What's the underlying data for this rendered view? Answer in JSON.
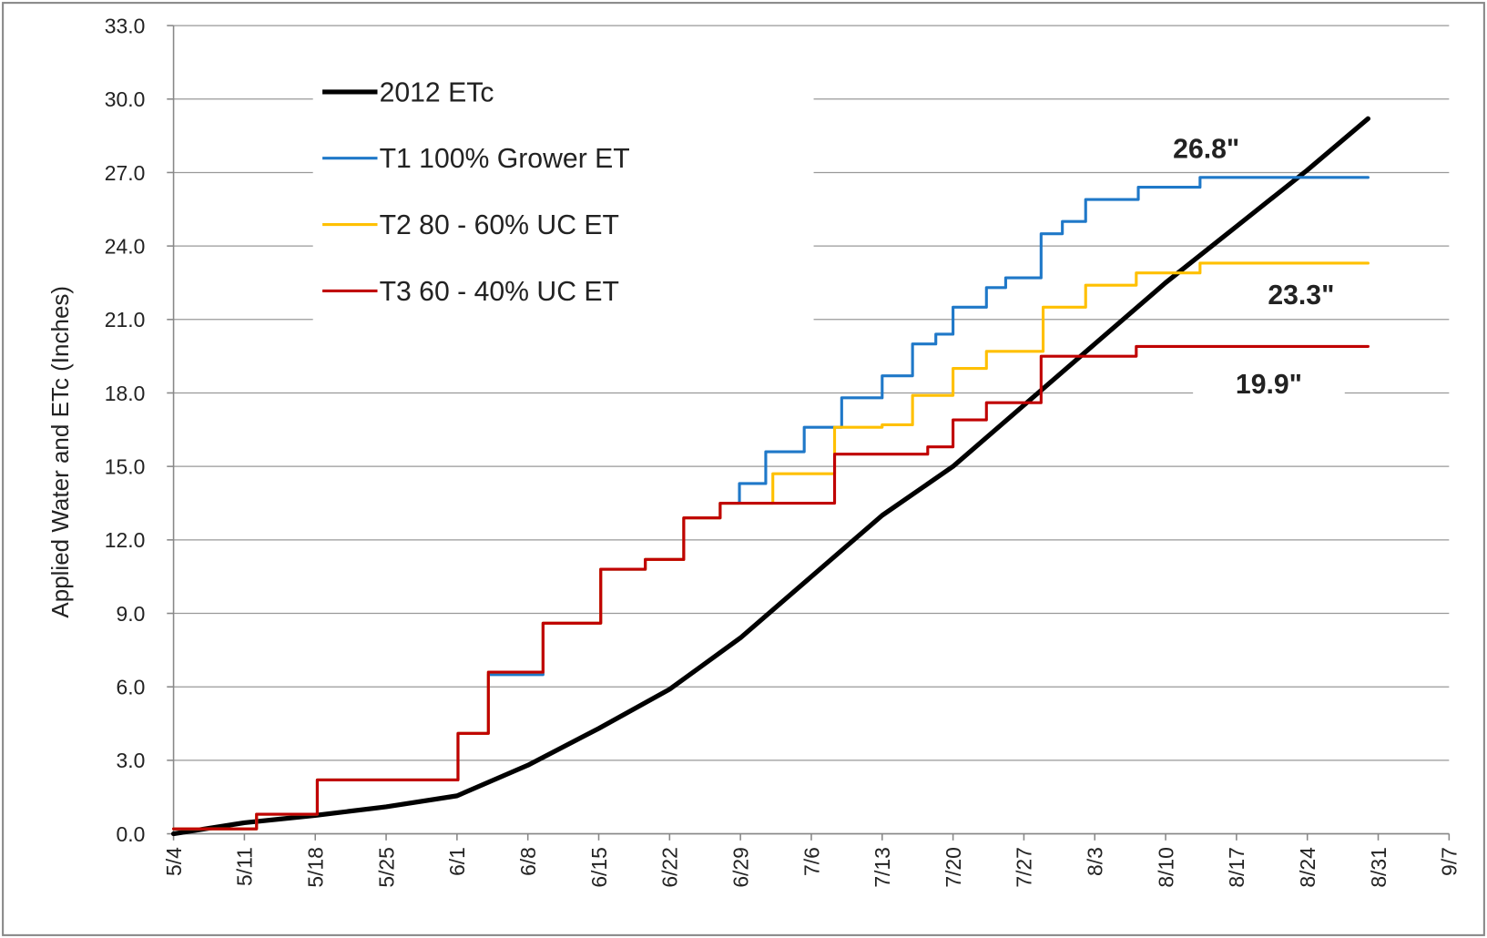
{
  "chart_data": {
    "type": "line",
    "ylabel": "Applied Water and ETc  (Inches)",
    "xlim": [
      0,
      126
    ],
    "xticks": [
      {
        "value": 0,
        "label": "5/4"
      },
      {
        "value": 7,
        "label": "5/11"
      },
      {
        "value": 14,
        "label": "5/18"
      },
      {
        "value": 21,
        "label": "5/25"
      },
      {
        "value": 28,
        "label": "6/1"
      },
      {
        "value": 35,
        "label": "6/8"
      },
      {
        "value": 42,
        "label": "6/15"
      },
      {
        "value": 49,
        "label": "6/22"
      },
      {
        "value": 56,
        "label": "6/29"
      },
      {
        "value": 63,
        "label": "7/6"
      },
      {
        "value": 70,
        "label": "7/13"
      },
      {
        "value": 77,
        "label": "7/20"
      },
      {
        "value": 84,
        "label": "7/27"
      },
      {
        "value": 91,
        "label": "8/3"
      },
      {
        "value": 98,
        "label": "8/10"
      },
      {
        "value": 105,
        "label": "8/17"
      },
      {
        "value": 112,
        "label": "8/24"
      },
      {
        "value": 119,
        "label": "8/31"
      },
      {
        "value": 126,
        "label": "9/7"
      }
    ],
    "ylim": [
      0,
      33
    ],
    "yticks": [
      {
        "value": 0,
        "label": "0.0"
      },
      {
        "value": 3,
        "label": "3.0"
      },
      {
        "value": 6,
        "label": "6.0"
      },
      {
        "value": 9,
        "label": "9.0"
      },
      {
        "value": 12,
        "label": "12.0"
      },
      {
        "value": 15,
        "label": "15.0"
      },
      {
        "value": 18,
        "label": "18.0"
      },
      {
        "value": 21,
        "label": "21.0"
      },
      {
        "value": 24,
        "label": "24.0"
      },
      {
        "value": 27,
        "label": "27.0"
      },
      {
        "value": 30,
        "label": "30.0"
      },
      {
        "value": 33,
        "label": "33.0"
      }
    ],
    "grid": true,
    "series": [
      {
        "name": "2012 ETc",
        "color": "#000000",
        "x": [
          0,
          7,
          14,
          21,
          28,
          35,
          42,
          49,
          56,
          63,
          70,
          77,
          84,
          91,
          98,
          105,
          112,
          118
        ],
        "values": [
          0.0,
          0.45,
          0.75,
          1.1,
          1.55,
          2.8,
          4.3,
          5.9,
          8.0,
          10.5,
          13.0,
          15.0,
          17.5,
          20.0,
          22.5,
          24.8,
          27.1,
          29.2
        ]
      },
      {
        "name": "T1  100% Grower ET",
        "color": "#1f78c8",
        "x": [
          0,
          8.2,
          8.2,
          14.2,
          14.2,
          28.1,
          28.1,
          31.1,
          31.1,
          36.5,
          36.5,
          42.2,
          42.2,
          46.6,
          46.6,
          50.4,
          50.4,
          54,
          54,
          55.9,
          55.9,
          58.5,
          58.5,
          62.3,
          62.3,
          66,
          66,
          70,
          70,
          73,
          73,
          75.3,
          75.3,
          77,
          77,
          80.3,
          80.3,
          82.2,
          82.2,
          85.7,
          85.7,
          87.8,
          87.8,
          90.1,
          90.1,
          95.3,
          95.3,
          101.4,
          101.4,
          118
        ],
        "values": [
          0.2,
          0.2,
          0.8,
          0.8,
          2.2,
          2.2,
          4.1,
          4.1,
          6.5,
          6.5,
          8.6,
          8.6,
          10.8,
          10.8,
          11.2,
          11.2,
          12.9,
          12.9,
          13.5,
          13.5,
          14.3,
          14.3,
          15.6,
          15.6,
          16.6,
          16.6,
          17.8,
          17.8,
          18.7,
          18.7,
          20.0,
          20.0,
          20.4,
          20.4,
          21.5,
          21.5,
          22.3,
          22.3,
          22.7,
          22.7,
          24.5,
          24.5,
          25.0,
          25.0,
          25.9,
          25.9,
          26.4,
          26.4,
          26.8,
          26.8
        ]
      },
      {
        "name": "T2  80 - 60% UC ET",
        "color": "#ffc000",
        "x": [
          0,
          8.2,
          8.2,
          14.2,
          14.2,
          28.1,
          28.1,
          31.1,
          31.1,
          36.5,
          36.5,
          42.2,
          42.2,
          46.6,
          46.6,
          50.4,
          50.4,
          54,
          54,
          59.2,
          59.2,
          65.3,
          65.3,
          70,
          70,
          73,
          73,
          77,
          77,
          80.3,
          80.3,
          85.9,
          85.9,
          90.1,
          90.1,
          95.1,
          95.1,
          101.4,
          101.4,
          118
        ],
        "values": [
          0.2,
          0.2,
          0.8,
          0.8,
          2.2,
          2.2,
          4.1,
          4.1,
          6.6,
          6.6,
          8.6,
          8.6,
          10.8,
          10.8,
          11.2,
          11.2,
          12.9,
          12.9,
          13.5,
          13.5,
          14.7,
          14.7,
          16.6,
          16.6,
          16.7,
          16.7,
          17.9,
          17.9,
          19.0,
          19.0,
          19.7,
          19.7,
          21.5,
          21.5,
          22.4,
          22.4,
          22.9,
          22.9,
          23.3,
          23.3
        ]
      },
      {
        "name": "T3  60 - 40% UC ET",
        "color": "#c00000",
        "x": [
          0,
          8.2,
          8.2,
          14.2,
          14.2,
          28.1,
          28.1,
          31.1,
          31.1,
          36.5,
          36.5,
          42.2,
          42.2,
          46.6,
          46.6,
          50.4,
          50.4,
          54,
          54,
          65.3,
          65.3,
          74.5,
          74.5,
          77,
          77,
          80.3,
          80.3,
          85.7,
          85.7,
          95.1,
          95.1,
          118
        ],
        "values": [
          0.2,
          0.2,
          0.8,
          0.8,
          2.2,
          2.2,
          4.1,
          4.1,
          6.6,
          6.6,
          8.6,
          8.6,
          10.8,
          10.8,
          11.2,
          11.2,
          12.9,
          12.9,
          13.5,
          13.5,
          15.5,
          15.5,
          15.8,
          15.8,
          16.9,
          16.9,
          17.6,
          17.6,
          19.5,
          19.5,
          19.9,
          19.9
        ]
      }
    ],
    "annotations": [
      "26.8\"",
      "23.3\"",
      "19.9\""
    ]
  }
}
